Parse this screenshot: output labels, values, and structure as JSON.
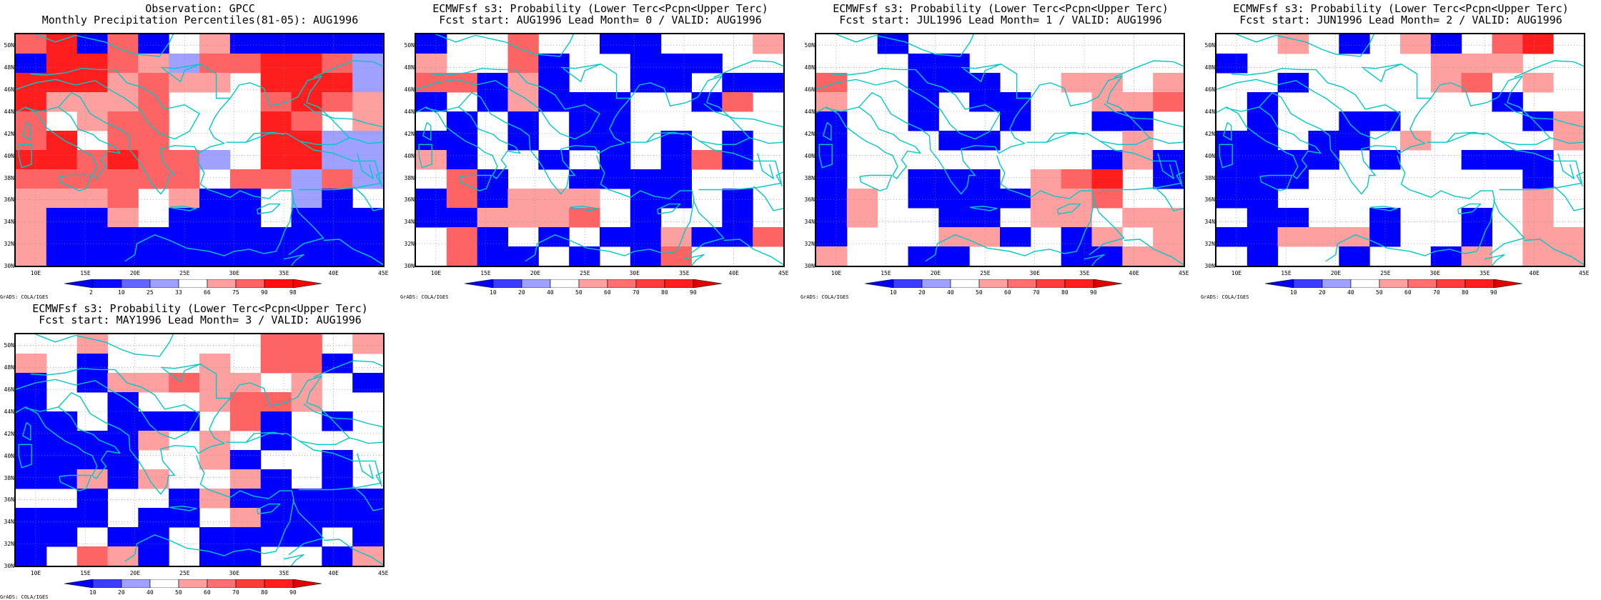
{
  "panels": [
    {
      "id": "obs",
      "title_line1": "Observation: GPCC",
      "title_line2": "Monthly Precipitation Percentiles(81-05): AUG1996",
      "colorbar": {
        "labels": [
          "2",
          "10",
          "25",
          "33",
          "66",
          "75",
          "90",
          "98"
        ],
        "colors": [
          "#0000ff",
          "#0a0aff",
          "#6464ff",
          "#a0a0ff",
          "#ffffff",
          "#ffa0a0",
          "#ff6464",
          "#ff1010",
          "#ff0000"
        ]
      },
      "grid": [
        "rRBrbwpbBbBb",
        "BRRrpLrrRRrL",
        "RRRprppwRRRL",
        "RppprwwwrRrp",
        "rwprrwwwRrwp",
        "rRwrrwwwRRLL",
        "RRrRrrLwRRLL",
        "rrrrrrwrrLrL",
        "ppprwpBbwLbw",
        "pbbpwbbbwbbb",
        "pbbBBbBbbbbb",
        "pbbbbbbbbbbb"
      ]
    },
    {
      "id": "lead0",
      "title_line1": "ECMWFsf s3: Probability (Lower Terc<Pcpn<Upper Terc)",
      "title_line2": "Fcst start: AUG1996  Lead Month= 0 / VALID: AUG1996",
      "colorbar": {
        "labels": [
          "10",
          "20",
          "40",
          "50",
          "60",
          "70",
          "80",
          "90"
        ],
        "colors": [
          "#0000ff",
          "#3c3cff",
          "#a0a0ff",
          "#ffffff",
          "#ffa0a0",
          "#ff7070",
          "#ff3c3c",
          "#ff1e1e",
          "#e00000"
        ]
      },
      "grid": [
        "bwwrwwbbwwwp",
        "pwwrbwwbbbww",
        "rrbpbwwbbwbb",
        "bwbpbbbwwbrw",
        "wbwbwbbwwwww",
        "bbwbwbbwbwbw",
        "pbwwbwbwbrbw",
        "wrbwwbbbbwww",
        "brbpppwbbwbw",
        "bbppprwbwwbw",
        "wrbwbwbbpbbr",
        "wrbbwbwbrwww"
      ]
    },
    {
      "id": "lead1",
      "title_line1": "ECMWFsf s3: Probability (Lower Terc<Pcpn<Upper Terc)",
      "title_line2": "Fcst start: JUL1996  Lead Month= 1 / VALID: AUG1996",
      "colorbar": {
        "labels": [
          "10",
          "20",
          "40",
          "50",
          "60",
          "70",
          "80",
          "90"
        ],
        "colors": [
          "#0000ff",
          "#3c3cff",
          "#a0a0ff",
          "#ffffff",
          "#ffa0a0",
          "#ff7070",
          "#ff3c3c",
          "#ff1e1e",
          "#e00000"
        ]
      },
      "grid": [
        "wwbwwwwwwwww",
        "wwwbbwwwwwww",
        "rwwbbbwwppwp",
        "pwwbwbbwwppr",
        "bwwbwwbwwbbw",
        "bwwwbbwwwwpw",
        "bwwwwwwwwbpb",
        "bwwbbbwprRwb",
        "bpwbbbbpprww",
        "bpwwbbwppwpp",
        "bwwwppbwbpwp",
        "pwwbbwwwbbpp"
      ]
    },
    {
      "id": "lead2",
      "title_line1": "ECMWFsf s3: Probability (Lower Terc<Pcpn<Upper Terc)",
      "title_line2": "Fcst start: JUN1996  Lead Month= 2 / VALID: AUG1996",
      "colorbar": {
        "labels": [
          "10",
          "20",
          "40",
          "50",
          "60",
          "70",
          "80",
          "90"
        ],
        "colors": [
          "#0000ff",
          "#3c3cff",
          "#a0a0ff",
          "#ffffff",
          "#ffa0a0",
          "#ff7070",
          "#ff3c3c",
          "#ff1e1e",
          "#e00000"
        ]
      },
      "grid": [
        "wwpwbwpbwrRw",
        "bwwwwwwpppww",
        "wwbwwwwprwpw",
        "wbwwwwwwwbww",
        "wbwwbbwwwwbp",
        "bbwbbwpwwwwp",
        "bbbbwbwwbbbw",
        "bbbwwwwwwwbw",
        "bbwwwwwwwwpw",
        "wbbwwbwwbwpw",
        "bbpppbwwbwpp",
        "wbwwbwwbpwpp"
      ]
    },
    {
      "id": "lead3",
      "title_line1": "ECMWFsf s3: Probability (Lower Terc<Pcpn<Upper Terc)",
      "title_line2": "Fcst start: MAY1996  Lead Month= 3 / VALID: AUG1996",
      "colorbar": {
        "labels": [
          "10",
          "20",
          "40",
          "50",
          "60",
          "70",
          "80",
          "90"
        ],
        "colors": [
          "#0000ff",
          "#3c3cff",
          "#a0a0ff",
          "#ffffff",
          "#ffa0a0",
          "#ff7070",
          "#ff3c3c",
          "#ff1e1e",
          "#e00000"
        ]
      },
      "grid": [
        "wwpwwwwwrrwp",
        "pwbwwwpwrrbw",
        "bwbpprppwpwb",
        "bwwbwwprrpww",
        "bbwbbbwrbwbw",
        "bbbbpwpwbwww",
        "bbbbwwpbwwbw",
        "bbpbpwwpbwbw",
        "wwbwwbpbbbbb",
        "bbbwbbwpbbbb",
        "bbwbbwbbbbwb",
        "bwrpbwbbwwbp"
      ]
    }
  ],
  "lat_labels": [
    "50N",
    "48N",
    "46N",
    "44N",
    "42N",
    "40N",
    "38N",
    "36N",
    "34N",
    "32N",
    "30N"
  ],
  "lon_labels": [
    "10E",
    "15E",
    "20E",
    "25E",
    "30E",
    "35E",
    "40E",
    "45E"
  ],
  "credit": "GrADS: COLA/IGES",
  "cell_colors": {
    "B": "#0000ff",
    "b": "#0000ff",
    "L": "#a0a0ff",
    "w": "#ffffff",
    "p": "#ffa0a0",
    "r": "#ff6464",
    "R": "#ff1e1e"
  },
  "coast_color": "#00c8c8"
}
